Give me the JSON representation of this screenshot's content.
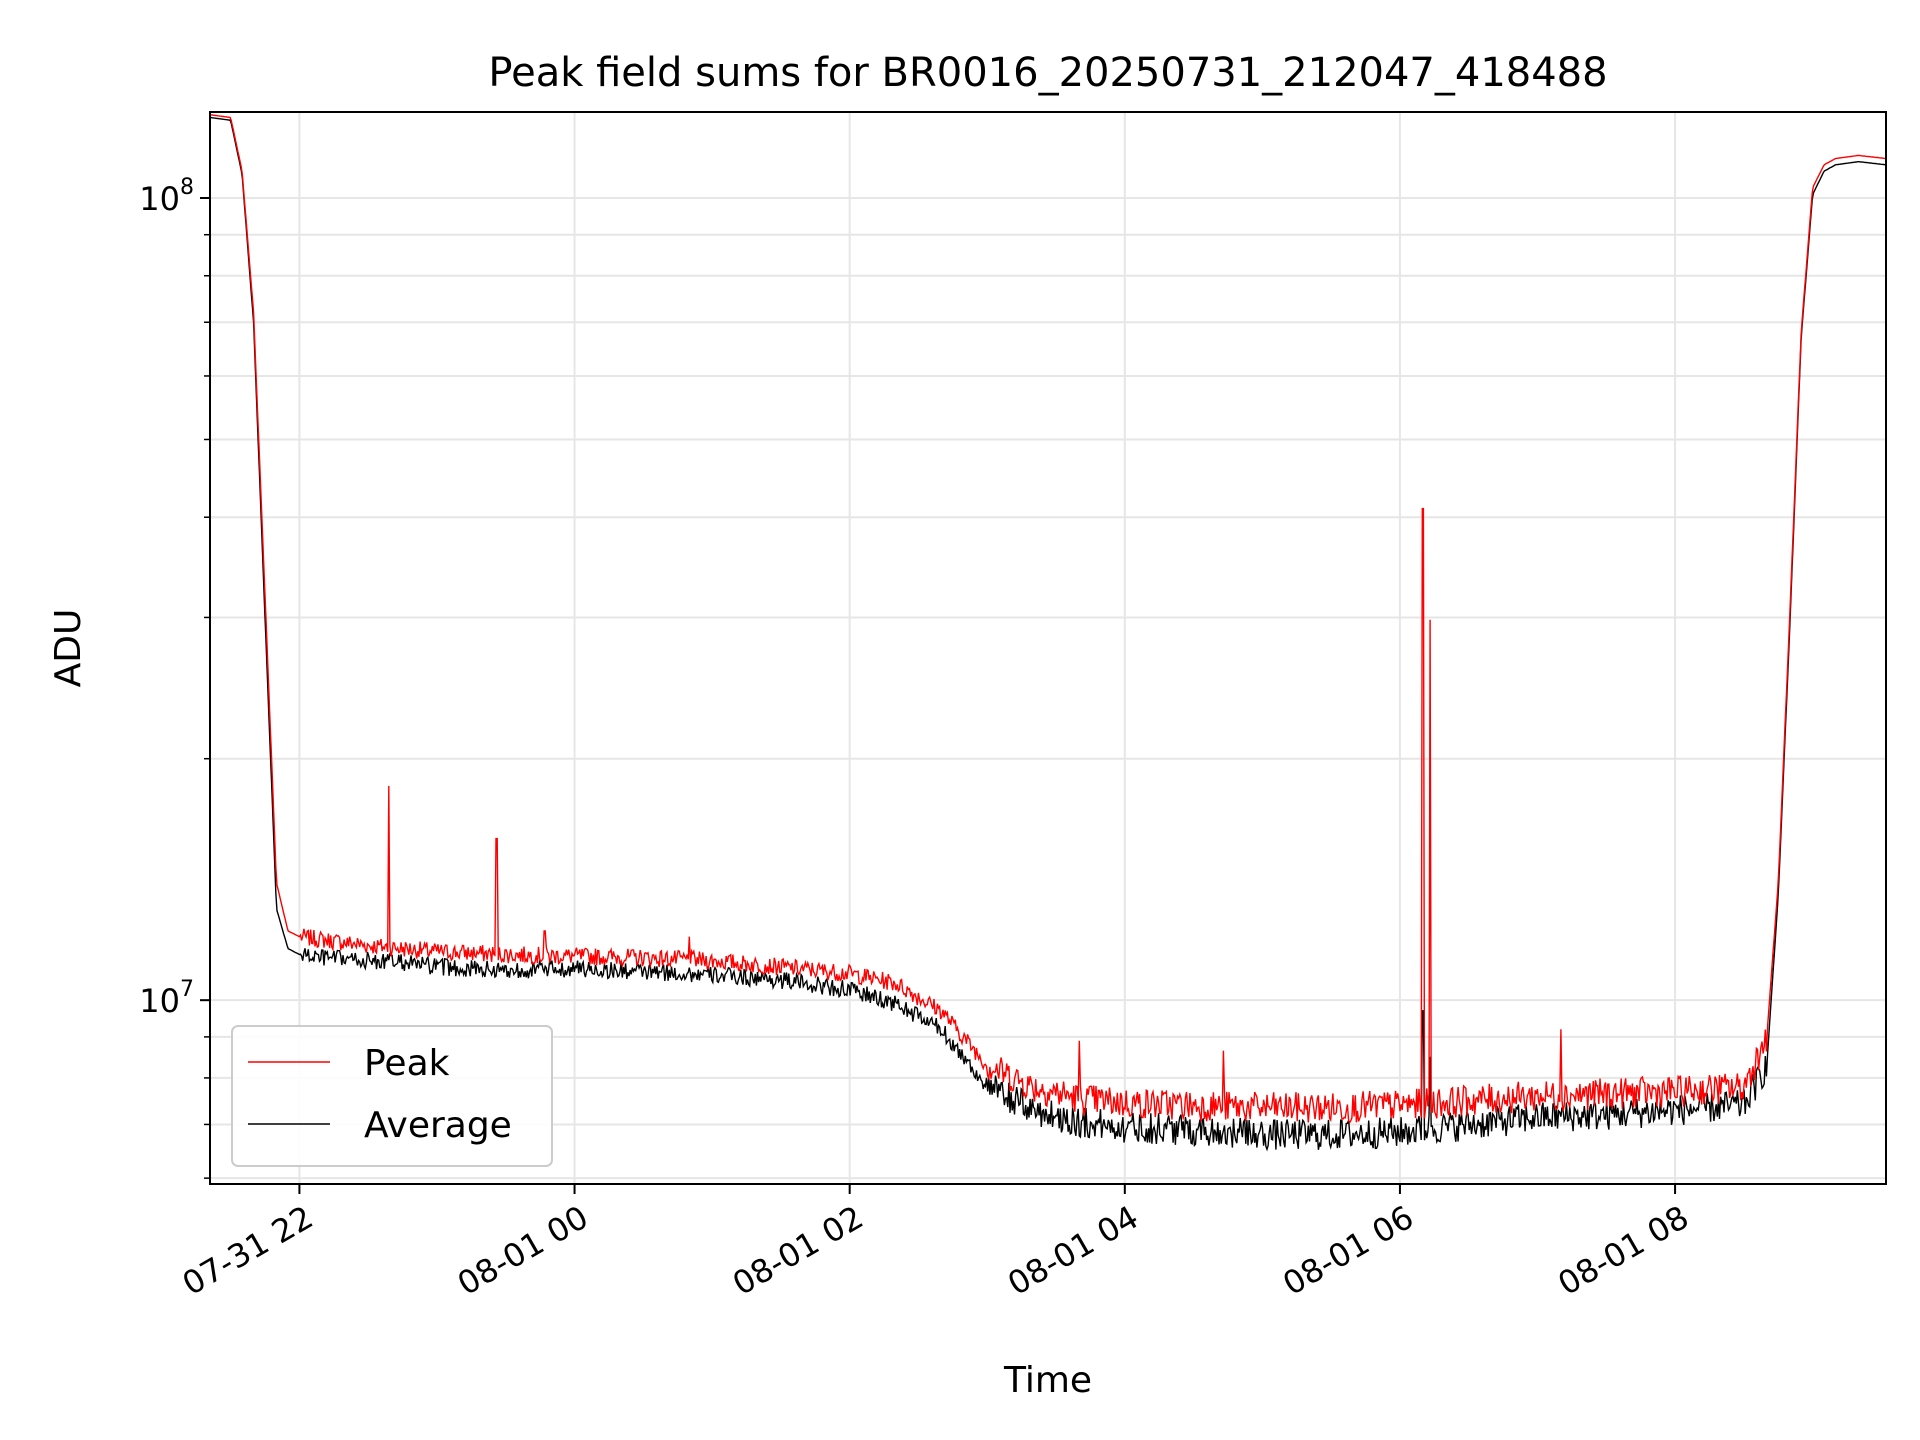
{
  "chart_data": {
    "type": "line",
    "title": "Peak field sums for BR0016_20250731_212047_418488",
    "xlabel": "Time",
    "ylabel": "ADU",
    "yscale": "log",
    "xlim": [
      "2025-07-31 21:21",
      "2025-08-01 09:32"
    ],
    "ylim": [
      5900000,
      128000000
    ],
    "grid": true,
    "legend": "lower-left",
    "x_ticks": [
      {
        "label": "07-31 22",
        "time": "2025-07-31 22:00"
      },
      {
        "label": "08-01 00",
        "time": "2025-08-01 00:00"
      },
      {
        "label": "08-01 02",
        "time": "2025-08-01 02:00"
      },
      {
        "label": "08-01 04",
        "time": "2025-08-01 04:00"
      },
      {
        "label": "08-01 06",
        "time": "2025-08-01 06:00"
      },
      {
        "label": "08-01 08",
        "time": "2025-08-01 08:00"
      }
    ],
    "y_ticks": [
      {
        "base": "10",
        "exp": "7",
        "value": 10000000
      },
      {
        "base": "10",
        "exp": "8",
        "value": 100000000
      }
    ],
    "series": [
      {
        "name": "Peak",
        "color": "#ff0000",
        "x": [
          "2025-07-31 21:21",
          "2025-07-31 21:30",
          "2025-07-31 21:35",
          "2025-07-31 21:40",
          "2025-07-31 21:45",
          "2025-07-31 21:50",
          "2025-07-31 21:55",
          "2025-07-31 22:00",
          "2025-07-31 22:10",
          "2025-07-31 22:30",
          "2025-07-31 22:45",
          "2025-07-31 23:00",
          "2025-07-31 23:30",
          "2025-08-01 00:00",
          "2025-08-01 00:30",
          "2025-08-01 01:00",
          "2025-08-01 01:30",
          "2025-08-01 02:00",
          "2025-08-01 02:20",
          "2025-08-01 02:40",
          "2025-08-01 03:00",
          "2025-08-01 03:20",
          "2025-08-01 03:40",
          "2025-08-01 04:00",
          "2025-08-01 04:30",
          "2025-08-01 05:00",
          "2025-08-01 05:30",
          "2025-08-01 06:00",
          "2025-08-01 06:30",
          "2025-08-01 07:00",
          "2025-08-01 07:30",
          "2025-08-01 08:00",
          "2025-08-01 08:30",
          "2025-08-01 08:40",
          "2025-08-01 08:45",
          "2025-08-01 08:50",
          "2025-08-01 08:55",
          "2025-08-01 09:00",
          "2025-08-01 09:05",
          "2025-08-01 09:10",
          "2025-08-01 09:20",
          "2025-08-01 09:32"
        ],
        "y": [
          127000000,
          126000000,
          108000000,
          72000000,
          32000000,
          14000000,
          12200000,
          12000000,
          11900000,
          11700000,
          11600000,
          11500000,
          11400000,
          11350000,
          11300000,
          11200000,
          11000000,
          10800000,
          10500000,
          9700000,
          8300000,
          7800000,
          7550000,
          7450000,
          7400000,
          7350000,
          7350000,
          7400000,
          7500000,
          7600000,
          7650000,
          7700000,
          7800000,
          9000000,
          14000000,
          30000000,
          68000000,
          103000000,
          110000000,
          112000000,
          113000000,
          112000000
        ],
        "spikes": [
          {
            "x": "2025-07-31 22:39",
            "y": 18500000
          },
          {
            "x": "2025-07-31 23:26",
            "y": 15900000
          },
          {
            "x": "2025-07-31 23:47",
            "y": 12200000
          },
          {
            "x": "2025-08-01 00:50",
            "y": 12000000
          },
          {
            "x": "2025-08-01 03:40",
            "y": 8900000
          },
          {
            "x": "2025-08-01 04:43",
            "y": 8650000
          },
          {
            "x": "2025-08-01 06:10",
            "y": 41000000
          },
          {
            "x": "2025-08-01 06:13",
            "y": 29800000
          },
          {
            "x": "2025-08-01 07:10",
            "y": 9200000
          }
        ]
      },
      {
        "name": "Average",
        "color": "#000000",
        "x": [
          "2025-07-31 21:21",
          "2025-07-31 21:30",
          "2025-07-31 21:35",
          "2025-07-31 21:40",
          "2025-07-31 21:45",
          "2025-07-31 21:50",
          "2025-07-31 21:55",
          "2025-07-31 22:00",
          "2025-07-31 22:10",
          "2025-07-31 22:30",
          "2025-07-31 22:45",
          "2025-07-31 23:00",
          "2025-07-31 23:30",
          "2025-08-01 00:00",
          "2025-08-01 00:30",
          "2025-08-01 01:00",
          "2025-08-01 01:30",
          "2025-08-01 02:00",
          "2025-08-01 02:20",
          "2025-08-01 02:40",
          "2025-08-01 03:00",
          "2025-08-01 03:20",
          "2025-08-01 03:40",
          "2025-08-01 04:00",
          "2025-08-01 04:30",
          "2025-08-01 05:00",
          "2025-08-01 05:30",
          "2025-08-01 06:00",
          "2025-08-01 06:30",
          "2025-08-01 07:00",
          "2025-08-01 07:30",
          "2025-08-01 08:00",
          "2025-08-01 08:30",
          "2025-08-01 08:40",
          "2025-08-01 08:45",
          "2025-08-01 08:50",
          "2025-08-01 08:55",
          "2025-08-01 09:00",
          "2025-08-01 09:05",
          "2025-08-01 09:10",
          "2025-08-01 09:20",
          "2025-08-01 09:32"
        ],
        "y": [
          126000000,
          125000000,
          107000000,
          70000000,
          30000000,
          13000000,
          11600000,
          11400000,
          11300000,
          11200000,
          11150000,
          11000000,
          10900000,
          10950000,
          10850000,
          10750000,
          10600000,
          10300000,
          9900000,
          9200000,
          7800000,
          7300000,
          7050000,
          6950000,
          6900000,
          6800000,
          6800000,
          6850000,
          7000000,
          7150000,
          7200000,
          7300000,
          7400000,
          8300000,
          13500000,
          29000000,
          67000000,
          101000000,
          108000000,
          110000000,
          111000000,
          110000000
        ],
        "spikes": [
          {
            "x": "2025-08-01 06:10",
            "y": 9700000
          },
          {
            "x": "2025-08-01 06:13",
            "y": 8500000
          }
        ]
      }
    ]
  }
}
